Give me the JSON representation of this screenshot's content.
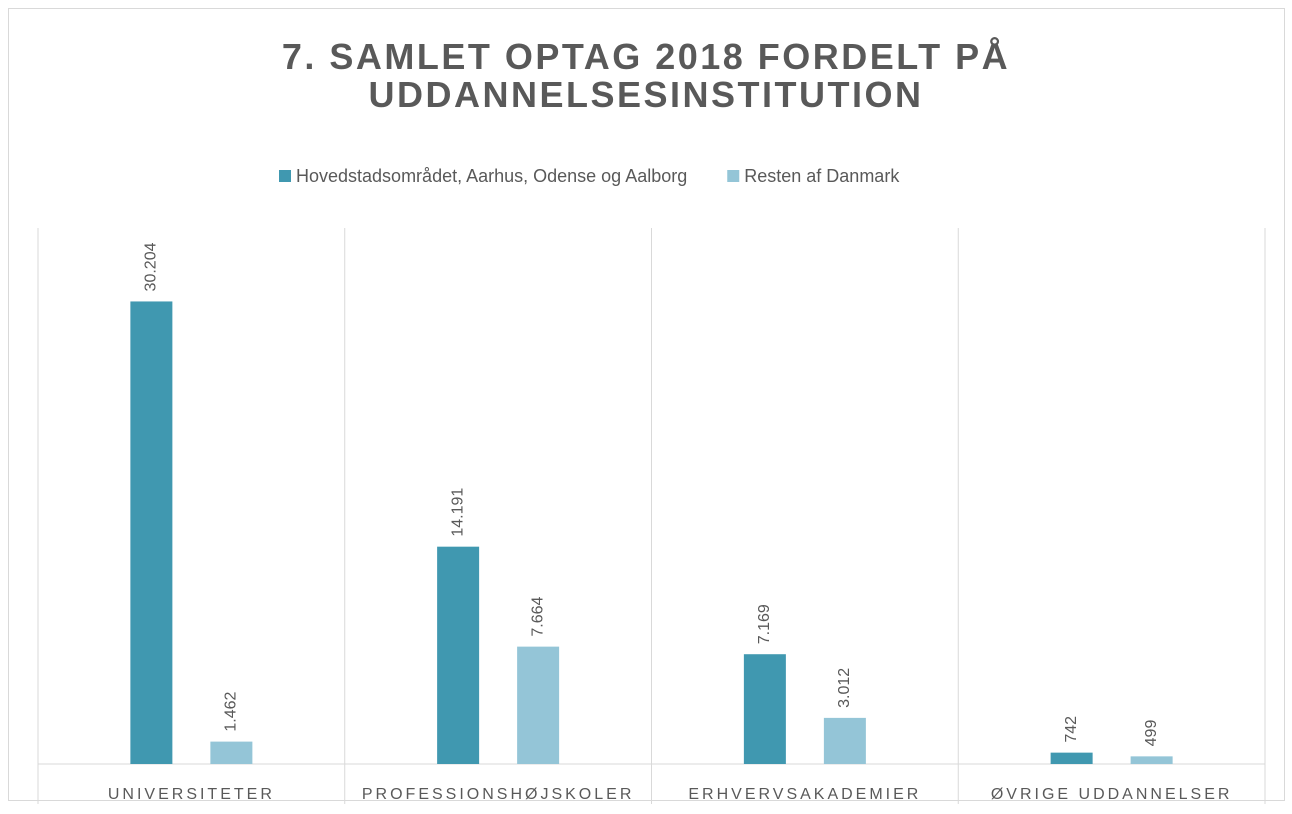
{
  "chart_data": {
    "type": "bar",
    "title": "7. SAMLET OPTAG 2018 FORDELT PÅ UDDANNELSESINSTITUTION",
    "categories": [
      "UNIVERSITETER",
      "PROFESSIONSHØJSKOLER",
      "ERHVERVSAKADEMIER",
      "ØVRIGE UDDANNELSER"
    ],
    "series": [
      {
        "name": "Hovedstadsområdet, Aarhus, Odense og Aalborg",
        "color": "#4098b0",
        "values": [
          30204,
          14191,
          7169,
          742
        ],
        "value_labels": [
          "30.204",
          "14.191",
          "7.169",
          "742"
        ]
      },
      {
        "name": "Resten af Danmark",
        "color": "#94c5d7",
        "values": [
          1462,
          7664,
          3012,
          499
        ],
        "value_labels": [
          "1.462",
          "7.664",
          "3.012",
          "499"
        ]
      }
    ],
    "ylim": [
      0,
      35000
    ],
    "legend": "top"
  }
}
